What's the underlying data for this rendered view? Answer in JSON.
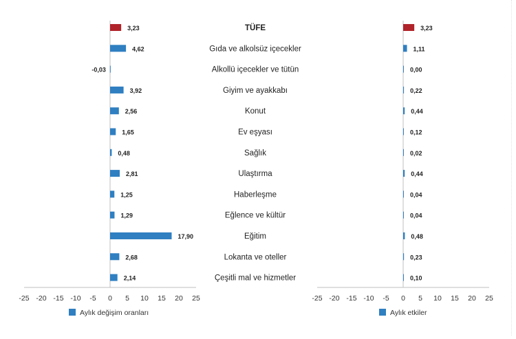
{
  "categories": [
    "TÜFE",
    "Gıda ve alkolsüz içecekler",
    "Alkollü içecekler ve tütün",
    "Giyim ve ayakkabı",
    "Konut",
    "Ev eşyası",
    "Sağlık",
    "Ulaştırma",
    "Haberleşme",
    "Eğlence ve kültür",
    "Eğitim",
    "Lokanta ve oteller",
    "Çeşitli mal ve hizmetler"
  ],
  "colors": {
    "highlight": "#b0232a",
    "bar": "#2f7fc1"
  },
  "chart_data": [
    {
      "type": "bar",
      "orientation": "horizontal",
      "series": [
        {
          "name": "Aylık değişim oranları",
          "values": [
            3.23,
            4.62,
            -0.03,
            3.92,
            2.56,
            1.65,
            0.48,
            2.81,
            1.25,
            1.29,
            17.9,
            2.68,
            2.14
          ]
        }
      ],
      "value_labels": [
        "3,23",
        "4,62",
        "-0,03",
        "3,92",
        "2,56",
        "1,65",
        "0,48",
        "2,81",
        "1,25",
        "1,29",
        "17,90",
        "2,68",
        "2,14"
      ],
      "xlim": [
        -25,
        25
      ],
      "xticks": [
        "-25",
        "-20",
        "-15",
        "-10",
        "-5",
        "0",
        "5",
        "10",
        "15",
        "20",
        "25"
      ],
      "legend": "bottom-left",
      "grid": false
    },
    {
      "type": "bar",
      "orientation": "horizontal",
      "series": [
        {
          "name": "Aylık etkiler",
          "values": [
            3.23,
            1.11,
            0.0,
            0.22,
            0.44,
            0.12,
            0.02,
            0.44,
            0.04,
            0.04,
            0.48,
            0.23,
            0.1
          ]
        }
      ],
      "value_labels": [
        "3,23",
        "1,11",
        "0,00",
        "0,22",
        "0,44",
        "0,12",
        "0,02",
        "0,44",
        "0,04",
        "0,04",
        "0,48",
        "0,23",
        "0,10"
      ],
      "xlim": [
        -25,
        25
      ],
      "xticks": [
        "-25",
        "-20",
        "-15",
        "-10",
        "-5",
        "0",
        "5",
        "10",
        "15",
        "20",
        "25"
      ],
      "legend": "bottom-left",
      "grid": false
    }
  ]
}
